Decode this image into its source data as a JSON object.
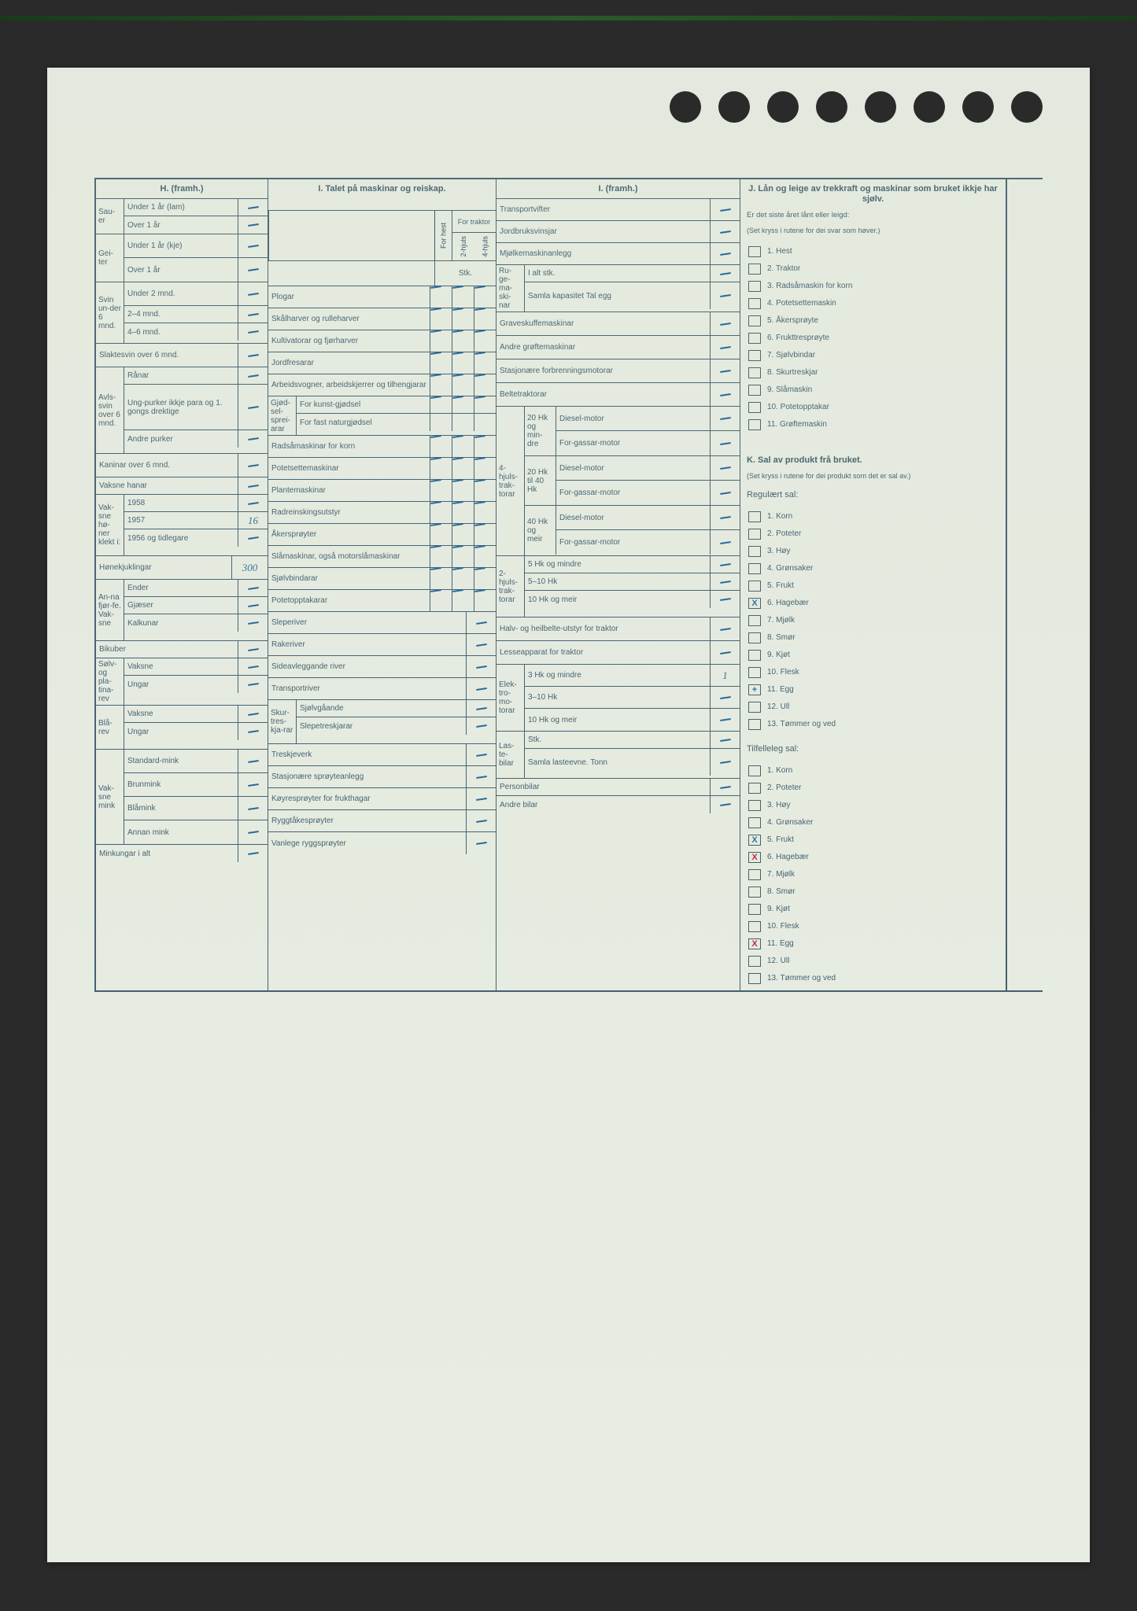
{
  "colors": {
    "paper": "#e8ede3",
    "ink": "#3a5a6a",
    "pen_blue": "#2a6a9a",
    "pen_red": "#c02040",
    "scan_bg": "#2a2a2a"
  },
  "H": {
    "title": "H. (framh.)",
    "groups": [
      {
        "side": "Sau-er",
        "rows": [
          {
            "l": "Under 1 år (lam)",
            "v": "-"
          },
          {
            "l": "Over 1 år",
            "v": "-"
          }
        ]
      },
      {
        "side": "Gei-ter",
        "rows": [
          {
            "l": "Under 1 år (kje)",
            "v": "-"
          },
          {
            "l": "Over 1 år",
            "v": "-"
          }
        ]
      },
      {
        "side": "Svin un-der 6 mnd.",
        "rows": [
          {
            "l": "Under 2 mnd.",
            "v": "-"
          },
          {
            "l": "2–4 mnd.",
            "v": "-"
          },
          {
            "l": "4–6 mnd.",
            "v": "-"
          }
        ]
      }
    ],
    "slakt": {
      "l": "Slaktesvin over 6 mnd.",
      "v": "-"
    },
    "avls": {
      "side": "Avls-svin over 6 mnd.",
      "rows": [
        {
          "l": "Rånar",
          "v": "-"
        },
        {
          "l": "Ung-purker ikkje para og 1. gongs drektige",
          "v": "-"
        },
        {
          "l": "Andre purker",
          "v": "-"
        }
      ]
    },
    "kaninar": {
      "l": "Kaninar over 6 mnd.",
      "v": "-"
    },
    "vaksne_hanar": {
      "l": "Vaksne hanar",
      "v": "-"
    },
    "honer": {
      "side": "Vak-sne hø-ner klekt i:",
      "rows": [
        {
          "l": "1958",
          "v": "-"
        },
        {
          "l": "1957",
          "v": "16"
        },
        {
          "l": "1956 og tidlegare",
          "v": "-"
        }
      ]
    },
    "honekj": {
      "l": "Hønekjuklingar",
      "v": "300"
    },
    "fjorfe": {
      "side": "An-na fjør-fe. Vak-sne",
      "rows": [
        {
          "l": "Ender",
          "v": "-"
        },
        {
          "l": "Gjæser",
          "v": "-"
        },
        {
          "l": "Kalkunar",
          "v": "-"
        }
      ]
    },
    "bikuber": {
      "l": "Bikuber",
      "v": "-"
    },
    "solv": {
      "side": "Sølv- og pla-tina-rev",
      "rows": [
        {
          "l": "Vaksne",
          "v": "-"
        },
        {
          "l": "Ungar",
          "v": "-"
        }
      ]
    },
    "bla": {
      "side": "Blå-rev",
      "rows": [
        {
          "l": "Vaksne",
          "v": "-"
        },
        {
          "l": "Ungar",
          "v": "-"
        }
      ]
    },
    "mink": {
      "side": "Vak-sne mink",
      "rows": [
        {
          "l": "Standard-mink",
          "v": "-"
        },
        {
          "l": "Brunmink",
          "v": "-"
        },
        {
          "l": "Blåmink",
          "v": "-"
        },
        {
          "l": "Annan mink",
          "v": "-"
        }
      ]
    },
    "minkungar": {
      "l": "Minkungar i alt",
      "v": "-"
    }
  },
  "I1": {
    "title": "I. Talet på maskinar og reiskap.",
    "colheads": {
      "a": "For hest",
      "b": "For traktor",
      "b1": "2-hjuls",
      "b2": "4-hjuls",
      "stk": "Stk."
    },
    "rows": [
      "Plogar",
      "Skålharver og rulleharver",
      "Kultivatorar og fjørharver",
      "Jordfresarar",
      "Arbeidsvogner, arbeidskjerrer og tilhengjarar"
    ],
    "gjod": {
      "side": "Gjød-sel-sprei-arar",
      "rows": [
        "For kunst-gjødsel",
        "For fast naturgjødsel"
      ]
    },
    "rows2": [
      "Radsåmaskinar for korn",
      "Potetsettemaskinar",
      "Plantemaskinar",
      "Radreinskingsutstyr",
      "Åkersprøyter",
      "Slåmaskinar, også motorslåmaskinar",
      "Sjølvbindarar",
      "Potetopptakarar",
      "Sleperiver",
      "Rakeriver",
      "Sideavleggande river",
      "Transportriver"
    ],
    "skur": {
      "side": "Skur-tres-kja-rar",
      "rows": [
        "Sjølvgåande",
        "Slepetreskjarar"
      ]
    },
    "rows3": [
      "Treskjeverk",
      "Stasjonære sprøyteanlegg",
      "Køyresprøyter for frukthagar",
      "Ryggtåkesprøyter",
      "Vanlege ryggsprøyter"
    ]
  },
  "I2": {
    "title": "I. (framh.)",
    "top": [
      {
        "l": "Transportvifter",
        "v": "-"
      },
      {
        "l": "Jordbruksvinsjar",
        "v": "-"
      },
      {
        "l": "Mjølkemaskinanlegg",
        "v": "-"
      }
    ],
    "ruge": {
      "side": "Ru-ge-ma-ski-nar",
      "rows": [
        {
          "l": "I alt stk.",
          "v": "-"
        },
        {
          "l": "Samla kapasitet Tal egg",
          "v": "-"
        }
      ]
    },
    "rows2": [
      {
        "l": "Graveskuffemaskinar",
        "v": "-"
      },
      {
        "l": "Andre grøftemaskinar",
        "v": "-"
      },
      {
        "l": "Stasjonære forbrenningsmotorar",
        "v": "-"
      },
      {
        "l": "Beltetraktorar",
        "v": "-"
      }
    ],
    "fourhjuls": {
      "side": "4-hjuls-trak-torar",
      "groups": [
        {
          "sub": "20 Hk og min-dre",
          "rows": [
            {
              "l": "Diesel-motor",
              "v": "-"
            },
            {
              "l": "For-gassar-motor",
              "v": "-"
            }
          ]
        },
        {
          "sub": "20 Hk til 40 Hk",
          "rows": [
            {
              "l": "Diesel-motor",
              "v": "-"
            },
            {
              "l": "For-gassar-motor",
              "v": "-"
            }
          ]
        },
        {
          "sub": "40 Hk og meir",
          "rows": [
            {
              "l": "Diesel-motor",
              "v": "-"
            },
            {
              "l": "For-gassar-motor",
              "v": "-"
            }
          ]
        }
      ]
    },
    "twohjuls": {
      "side": "2-hjuls-trak-torar",
      "rows": [
        {
          "l": "5 Hk og mindre",
          "v": "-"
        },
        {
          "l": "5–10 Hk",
          "v": "-"
        },
        {
          "l": "10 Hk og meir",
          "v": "-"
        }
      ]
    },
    "halv": {
      "l": "Halv- og heilbelte-utstyr for traktor",
      "v": "-"
    },
    "lesse": {
      "l": "Lesseapparat for traktor",
      "v": "-"
    },
    "elektro": {
      "side": "Elek-tro-mo-torar",
      "rows": [
        {
          "l": "3 Hk og mindre",
          "v": "1"
        },
        {
          "l": "3–10 Hk",
          "v": "-"
        },
        {
          "l": "10 Hk og meir",
          "v": "-"
        }
      ]
    },
    "laste": {
      "side": "Las-te-bilar",
      "rows": [
        {
          "l": "Stk.",
          "v": "-"
        },
        {
          "l": "Samla lasteevne. Tonn",
          "v": "-"
        }
      ]
    },
    "person": {
      "l": "Personbilar",
      "v": "-"
    },
    "andre": {
      "l": "Andre bilar",
      "v": "-"
    }
  },
  "J": {
    "title": "J. Lån og leige av trekkraft og maskinar som bruket ikkje har sjølv.",
    "sub": "Er det siste året lånt eller leigd:",
    "note": "(Set kryss i rutene for dei svar som høver.)",
    "items": [
      {
        "n": "1.",
        "l": "Hest",
        "x": ""
      },
      {
        "n": "2.",
        "l": "Traktor",
        "x": ""
      },
      {
        "n": "3.",
        "l": "Radsåmaskin for korn",
        "x": ""
      },
      {
        "n": "4.",
        "l": "Potetsettemaskin",
        "x": ""
      },
      {
        "n": "5.",
        "l": "Åkersprøyte",
        "x": ""
      },
      {
        "n": "6.",
        "l": "Frukttresprøyte",
        "x": ""
      },
      {
        "n": "7.",
        "l": "Sjølvbindar",
        "x": ""
      },
      {
        "n": "8.",
        "l": "Skurtreskjar",
        "x": ""
      },
      {
        "n": "9.",
        "l": "Slåmaskin",
        "x": ""
      },
      {
        "n": "10.",
        "l": "Potetopptakar",
        "x": ""
      },
      {
        "n": "11.",
        "l": "Grøftemaskin",
        "x": ""
      }
    ]
  },
  "K": {
    "title": "K. Sal av produkt frå bruket.",
    "note": "(Set kryss i rutene for dei produkt som det er sal av.)",
    "reg_title": "Regulært sal:",
    "reg": [
      {
        "n": "1.",
        "l": "Korn",
        "x": ""
      },
      {
        "n": "2.",
        "l": "Poteter",
        "x": ""
      },
      {
        "n": "3.",
        "l": "Høy",
        "x": ""
      },
      {
        "n": "4.",
        "l": "Grønsaker",
        "x": ""
      },
      {
        "n": "5.",
        "l": "Frukt",
        "x": ""
      },
      {
        "n": "6.",
        "l": "Hagebær",
        "x": "X",
        "c": "blue"
      },
      {
        "n": "7.",
        "l": "Mjølk",
        "x": ""
      },
      {
        "n": "8.",
        "l": "Smør",
        "x": ""
      },
      {
        "n": "9.",
        "l": "Kjøt",
        "x": ""
      },
      {
        "n": "10.",
        "l": "Flesk",
        "x": ""
      },
      {
        "n": "11.",
        "l": "Egg",
        "x": "+",
        "c": "blue"
      },
      {
        "n": "12.",
        "l": "Ull",
        "x": ""
      },
      {
        "n": "13.",
        "l": "Tømmer og ved",
        "x": ""
      }
    ],
    "til_title": "Tilfelleleg sal:",
    "til": [
      {
        "n": "1.",
        "l": "Korn",
        "x": ""
      },
      {
        "n": "2.",
        "l": "Poteter",
        "x": ""
      },
      {
        "n": "3.",
        "l": "Høy",
        "x": ""
      },
      {
        "n": "4.",
        "l": "Grønsaker",
        "x": ""
      },
      {
        "n": "5.",
        "l": "Frukt",
        "x": "X",
        "c": "blue"
      },
      {
        "n": "6.",
        "l": "Hagebær",
        "x": "X",
        "c": "red"
      },
      {
        "n": "7.",
        "l": "Mjølk",
        "x": ""
      },
      {
        "n": "8.",
        "l": "Smør",
        "x": ""
      },
      {
        "n": "9.",
        "l": "Kjøt",
        "x": ""
      },
      {
        "n": "10.",
        "l": "Flesk",
        "x": ""
      },
      {
        "n": "11.",
        "l": "Egg",
        "x": "X",
        "c": "red"
      },
      {
        "n": "12.",
        "l": "Ull",
        "x": ""
      },
      {
        "n": "13.",
        "l": "Tømmer og ved",
        "x": ""
      }
    ]
  }
}
